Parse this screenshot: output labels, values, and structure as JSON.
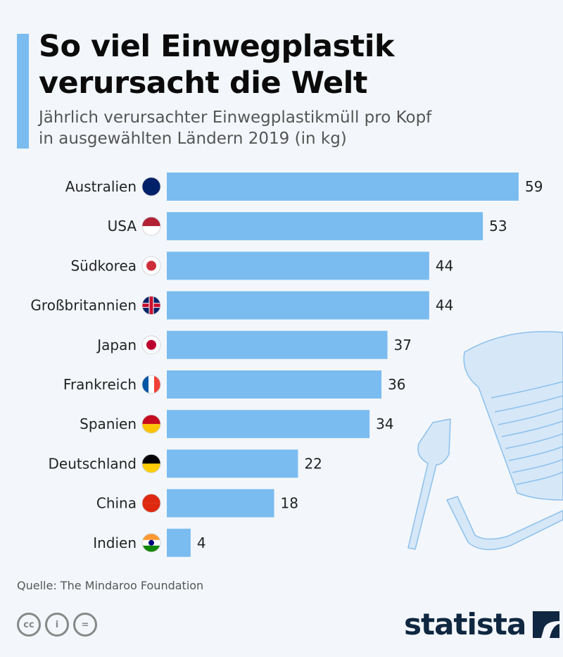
{
  "header": {
    "title_line1": "So viel Einwegplastik",
    "title_line2": "verursacht die Welt",
    "subtitle_line1": "Jährlich verursachter Einwegplastikmüll pro Kopf",
    "subtitle_line2": "in ausgewählten Ländern 2019 (in kg)"
  },
  "footer": {
    "source": "Quelle: The Mindaroo Foundation",
    "license_icons": [
      "cc-icon",
      "by-icon",
      "nd-icon"
    ],
    "license_labels": [
      "cc",
      "i",
      "="
    ],
    "logo_text": "statista"
  },
  "colors": {
    "bar": "#7bbcf0",
    "accent": "#7bbcf0",
    "background": "#f3f7fb",
    "logo": "#0f2740"
  },
  "chart_data": {
    "type": "bar",
    "orientation": "horizontal",
    "title": "So viel Einwegplastik verursacht die Welt",
    "subtitle": "Jährlich verursachter Einwegplastikmüll pro Kopf in ausgewählten Ländern 2019 (in kg)",
    "xlabel": "",
    "ylabel": "",
    "unit": "kg",
    "categories": [
      "Australien",
      "USA",
      "Südkorea",
      "Großbritannien",
      "Japan",
      "Frankreich",
      "Spanien",
      "Deutschland",
      "China",
      "Indien"
    ],
    "flags": [
      "au",
      "us",
      "kr",
      "gb",
      "jp",
      "fr",
      "es",
      "de",
      "cn",
      "in"
    ],
    "values": [
      59,
      53,
      44,
      44,
      37,
      36,
      34,
      22,
      18,
      4
    ],
    "xlim": [
      0,
      59
    ],
    "grid": false,
    "legend": "none"
  }
}
